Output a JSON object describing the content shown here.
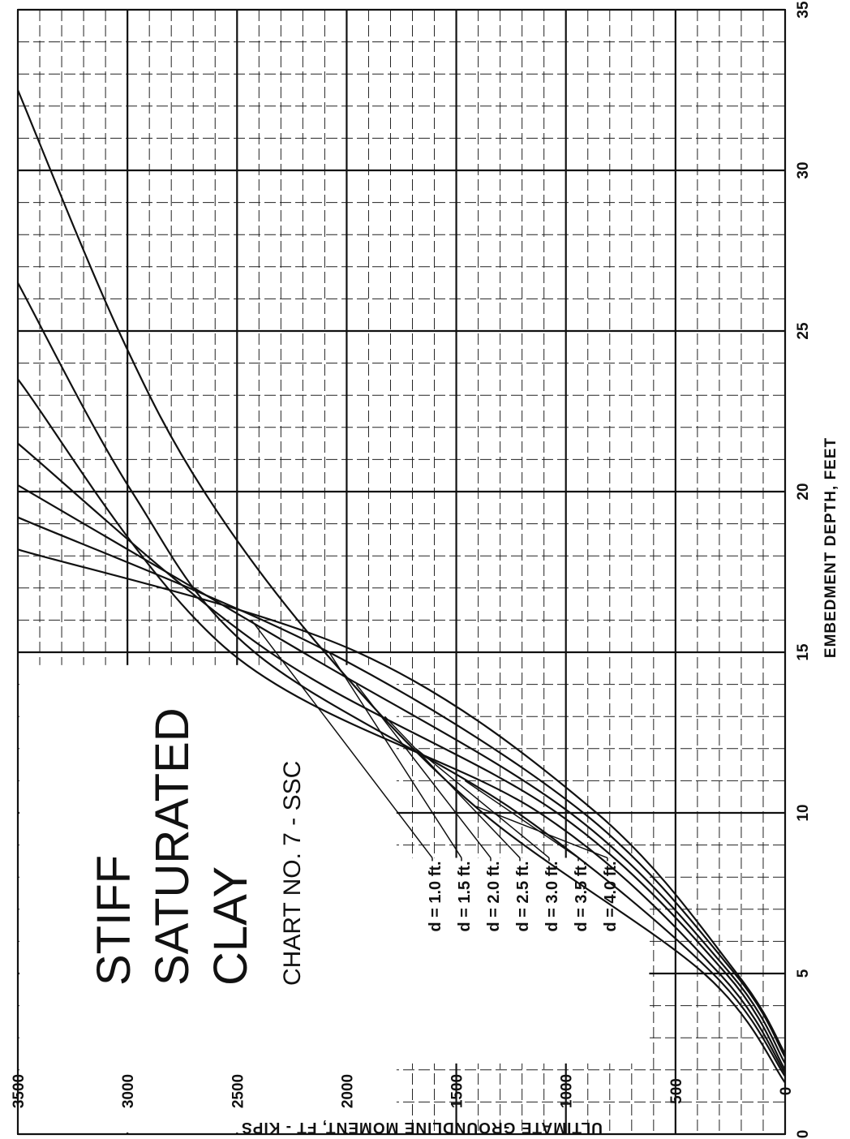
{
  "chart_data": {
    "type": "line",
    "title": "STIFF SATURATED CLAY",
    "title_lines": [
      "STIFF",
      "SATURATED",
      "CLAY"
    ],
    "subtitle": "CHART NO. 7 - SSC",
    "xlabel": "EMBEDMENT DEPTH, FEET",
    "ylabel": "ULTIMATE GROUNDLINE MOMENT, FT - KIPS",
    "xlim": [
      0,
      35
    ],
    "ylim": [
      0,
      3500
    ],
    "x_ticks": [
      "0",
      "5",
      "10",
      "15",
      "20",
      "25",
      "30",
      "35"
    ],
    "y_ticks": [
      "0",
      "500",
      "1000",
      "1500",
      "2000",
      "2500",
      "3000",
      "3500"
    ],
    "grid": true,
    "orientation": "rotated 90 degrees counter-clockwise",
    "legend_position": "lower-left (inside plot)",
    "series": [
      {
        "name": "d = 1.0 ft.",
        "x": [
          2.5,
          5,
          10,
          15,
          18.2
        ],
        "y": [
          0,
          220,
          860,
          1950,
          3500
        ],
        "label_at_x": 16.0
      },
      {
        "name": "d = 1.5 ft.",
        "x": [
          2.4,
          5,
          10,
          15,
          19.2
        ],
        "y": [
          0,
          230,
          920,
          2080,
          3500
        ],
        "label_at_x": 15.0
      },
      {
        "name": "d = 2.0 ft.",
        "x": [
          2.2,
          5,
          10,
          15,
          20.2
        ],
        "y": [
          0,
          250,
          980,
          2200,
          3500
        ],
        "label_at_x": 14.0
      },
      {
        "name": "d = 2.5 ft.",
        "x": [
          2.0,
          5,
          10,
          15,
          21.5
        ],
        "y": [
          0,
          270,
          1040,
          2350,
          3500
        ],
        "label_at_x": 13.0
      },
      {
        "name": "d = 3.0 ft.",
        "x": [
          1.9,
          5,
          10,
          15,
          23.5
        ],
        "y": [
          0,
          300,
          1120,
          2530,
          3500
        ],
        "label_at_x": 12.0
      },
      {
        "name": "d = 3.5 ft.",
        "x": [
          1.8,
          5,
          10,
          15,
          20,
          26.5
        ],
        "y": [
          0,
          330,
          1220,
          2420,
          2980,
          3500
        ],
        "label_at_x": 11.0
      },
      {
        "name": "d = 4.0 ft.",
        "x": [
          1.6,
          5,
          10,
          15,
          20,
          25,
          32.5
        ],
        "y": [
          0,
          370,
          1380,
          2100,
          2650,
          3040,
          3500
        ],
        "label_at_x": 10.2
      }
    ]
  }
}
